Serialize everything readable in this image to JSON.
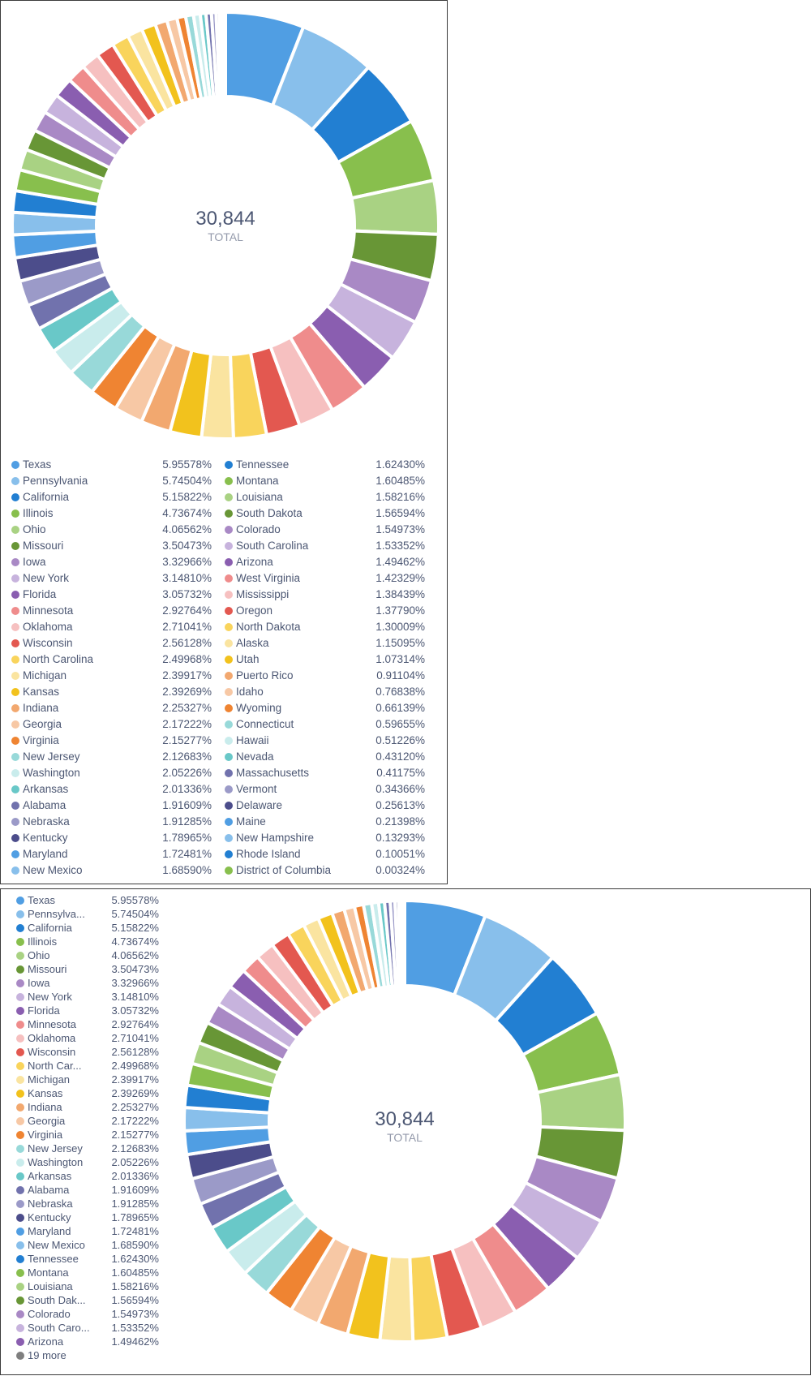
{
  "chart_data": [
    {
      "type": "pie",
      "variant": "donut",
      "total_value": "30,844",
      "total_label": "TOTAL",
      "legend_placement": "bottom",
      "categories": [
        "Texas",
        "Pennsylvania",
        "California",
        "Illinois",
        "Ohio",
        "Missouri",
        "Iowa",
        "New York",
        "Florida",
        "Minnesota",
        "Oklahoma",
        "Wisconsin",
        "North Carolina",
        "Michigan",
        "Kansas",
        "Indiana",
        "Georgia",
        "Virginia",
        "New Jersey",
        "Washington",
        "Arkansas",
        "Alabama",
        "Nebraska",
        "Kentucky",
        "Maryland",
        "New Mexico",
        "Tennessee",
        "Montana",
        "Louisiana",
        "South Dakota",
        "Colorado",
        "South Carolina",
        "Arizona",
        "West Virginia",
        "Mississippi",
        "Oregon",
        "North Dakota",
        "Alaska",
        "Utah",
        "Puerto Rico",
        "Idaho",
        "Wyoming",
        "Connecticut",
        "Hawaii",
        "Nevada",
        "Massachusetts",
        "Vermont",
        "Delaware",
        "Maine",
        "New Hampshire",
        "Rhode Island",
        "District of Columbia"
      ],
      "values": [
        5.95578,
        5.74504,
        5.15822,
        4.73674,
        4.06562,
        3.50473,
        3.32966,
        3.1481,
        3.05732,
        2.92764,
        2.71041,
        2.56128,
        2.49968,
        2.39917,
        2.39269,
        2.25327,
        2.17222,
        2.15277,
        2.12683,
        2.05226,
        2.01336,
        1.91609,
        1.91285,
        1.78965,
        1.72481,
        1.6859,
        1.6243,
        1.60485,
        1.58216,
        1.56594,
        1.54973,
        1.53352,
        1.49462,
        1.42329,
        1.38439,
        1.3779,
        1.30009,
        1.15095,
        1.07314,
        0.91104,
        0.76838,
        0.66139,
        0.59655,
        0.51226,
        0.4312,
        0.41175,
        0.34366,
        0.25613,
        0.21398,
        0.13293,
        0.10051,
        0.00324
      ],
      "labels": [
        "5.95578%",
        "5.74504%",
        "5.15822%",
        "4.73674%",
        "4.06562%",
        "3.50473%",
        "3.32966%",
        "3.14810%",
        "3.05732%",
        "2.92764%",
        "2.71041%",
        "2.56128%",
        "2.49968%",
        "2.39917%",
        "2.39269%",
        "2.25327%",
        "2.17222%",
        "2.15277%",
        "2.12683%",
        "2.05226%",
        "2.01336%",
        "1.91609%",
        "1.91285%",
        "1.78965%",
        "1.72481%",
        "1.68590%",
        "1.62430%",
        "1.60485%",
        "1.58216%",
        "1.56594%",
        "1.54973%",
        "1.53352%",
        "1.49462%",
        "1.42329%",
        "1.38439%",
        "1.37790%",
        "1.30009%",
        "1.15095%",
        "1.07314%",
        "0.91104%",
        "0.76838%",
        "0.66139%",
        "0.59655%",
        "0.51226%",
        "0.43120%",
        "0.41175%",
        "0.34366%",
        "0.25613%",
        "0.21398%",
        "0.13293%",
        "0.10051%",
        "0.00324%"
      ],
      "legend_display_names": []
    },
    {
      "type": "pie",
      "variant": "donut",
      "total_value": "30,844",
      "total_label": "TOTAL",
      "legend_placement": "left",
      "categories": [
        "Texas",
        "Pennsylvania",
        "California",
        "Illinois",
        "Ohio",
        "Missouri",
        "Iowa",
        "New York",
        "Florida",
        "Minnesota",
        "Oklahoma",
        "Wisconsin",
        "North Carolina",
        "Michigan",
        "Kansas",
        "Indiana",
        "Georgia",
        "Virginia",
        "New Jersey",
        "Washington",
        "Arkansas",
        "Alabama",
        "Nebraska",
        "Kentucky",
        "Maryland",
        "New Mexico",
        "Tennessee",
        "Montana",
        "Louisiana",
        "South Dakota",
        "Colorado",
        "South Carolina",
        "Arizona",
        "West Virginia",
        "Mississippi",
        "Oregon",
        "North Dakota",
        "Alaska",
        "Utah",
        "Puerto Rico",
        "Idaho",
        "Wyoming",
        "Connecticut",
        "Hawaii",
        "Nevada",
        "Massachusetts",
        "Vermont",
        "Delaware",
        "Maine",
        "New Hampshire",
        "Rhode Island",
        "District of Columbia"
      ],
      "values": [
        5.95578,
        5.74504,
        5.15822,
        4.73674,
        4.06562,
        3.50473,
        3.32966,
        3.1481,
        3.05732,
        2.92764,
        2.71041,
        2.56128,
        2.49968,
        2.39917,
        2.39269,
        2.25327,
        2.17222,
        2.15277,
        2.12683,
        2.05226,
        2.01336,
        1.91609,
        1.91285,
        1.78965,
        1.72481,
        1.6859,
        1.6243,
        1.60485,
        1.58216,
        1.56594,
        1.54973,
        1.53352,
        1.49462,
        1.42329,
        1.38439,
        1.3779,
        1.30009,
        1.15095,
        1.07314,
        0.91104,
        0.76838,
        0.66139,
        0.59655,
        0.51226,
        0.4312,
        0.41175,
        0.34366,
        0.25613,
        0.21398,
        0.13293,
        0.10051,
        0.00324
      ],
      "labels": [
        "5.95578%",
        "5.74504%",
        "5.15822%",
        "4.73674%",
        "4.06562%",
        "3.50473%",
        "3.32966%",
        "3.14810%",
        "3.05732%",
        "2.92764%",
        "2.71041%",
        "2.56128%",
        "2.49968%",
        "2.39917%",
        "2.39269%",
        "2.25327%",
        "2.17222%",
        "2.15277%",
        "2.12683%",
        "2.05226%",
        "2.01336%",
        "1.91609%",
        "1.91285%",
        "1.78965%",
        "1.72481%",
        "1.68590%",
        "1.62430%",
        "1.60485%",
        "1.58216%",
        "1.56594%",
        "1.54973%",
        "1.53352%",
        "1.49462%",
        "1.42329%",
        "1.38439%",
        "1.37790%",
        "1.30009%",
        "1.15095%",
        "1.07314%",
        "0.91104%",
        "0.76838%",
        "0.66139%",
        "0.59655%",
        "0.51226%",
        "0.43120%",
        "0.41175%",
        "0.34366%",
        "0.25613%",
        "0.21398%",
        "0.13293%",
        "0.10051%",
        "0.00324%"
      ],
      "legend_display_names": [
        "Texas",
        "Pennsylva...",
        "California",
        "Illinois",
        "Ohio",
        "Missouri",
        "Iowa",
        "New York",
        "Florida",
        "Minnesota",
        "Oklahoma",
        "Wisconsin",
        "North Car...",
        "Michigan",
        "Kansas",
        "Indiana",
        "Georgia",
        "Virginia",
        "New Jersey",
        "Washington",
        "Arkansas",
        "Alabama",
        "Nebraska",
        "Kentucky",
        "Maryland",
        "New Mexico",
        "Tennessee",
        "Montana",
        "Louisiana",
        "South Dak...",
        "Colorado",
        "South Caro...",
        "Arizona"
      ],
      "legend_more": "19 more"
    }
  ],
  "palette": [
    "#509ee3",
    "#88bfeb",
    "#227fd2",
    "#88bf4d",
    "#a9d283",
    "#689636",
    "#a989c5",
    "#c7b3dd",
    "#8a5eb0",
    "#ef8c8c",
    "#f6c0c0",
    "#e35850",
    "#f9d45c",
    "#fae4a0",
    "#f2c21d",
    "#f2a86f",
    "#f7c8a5",
    "#ef8432",
    "#98d9d9",
    "#c9ecec",
    "#69c8c8",
    "#7172ad",
    "#9b9ac8",
    "#4c4d8b"
  ],
  "more_color": "#7f7f7f"
}
